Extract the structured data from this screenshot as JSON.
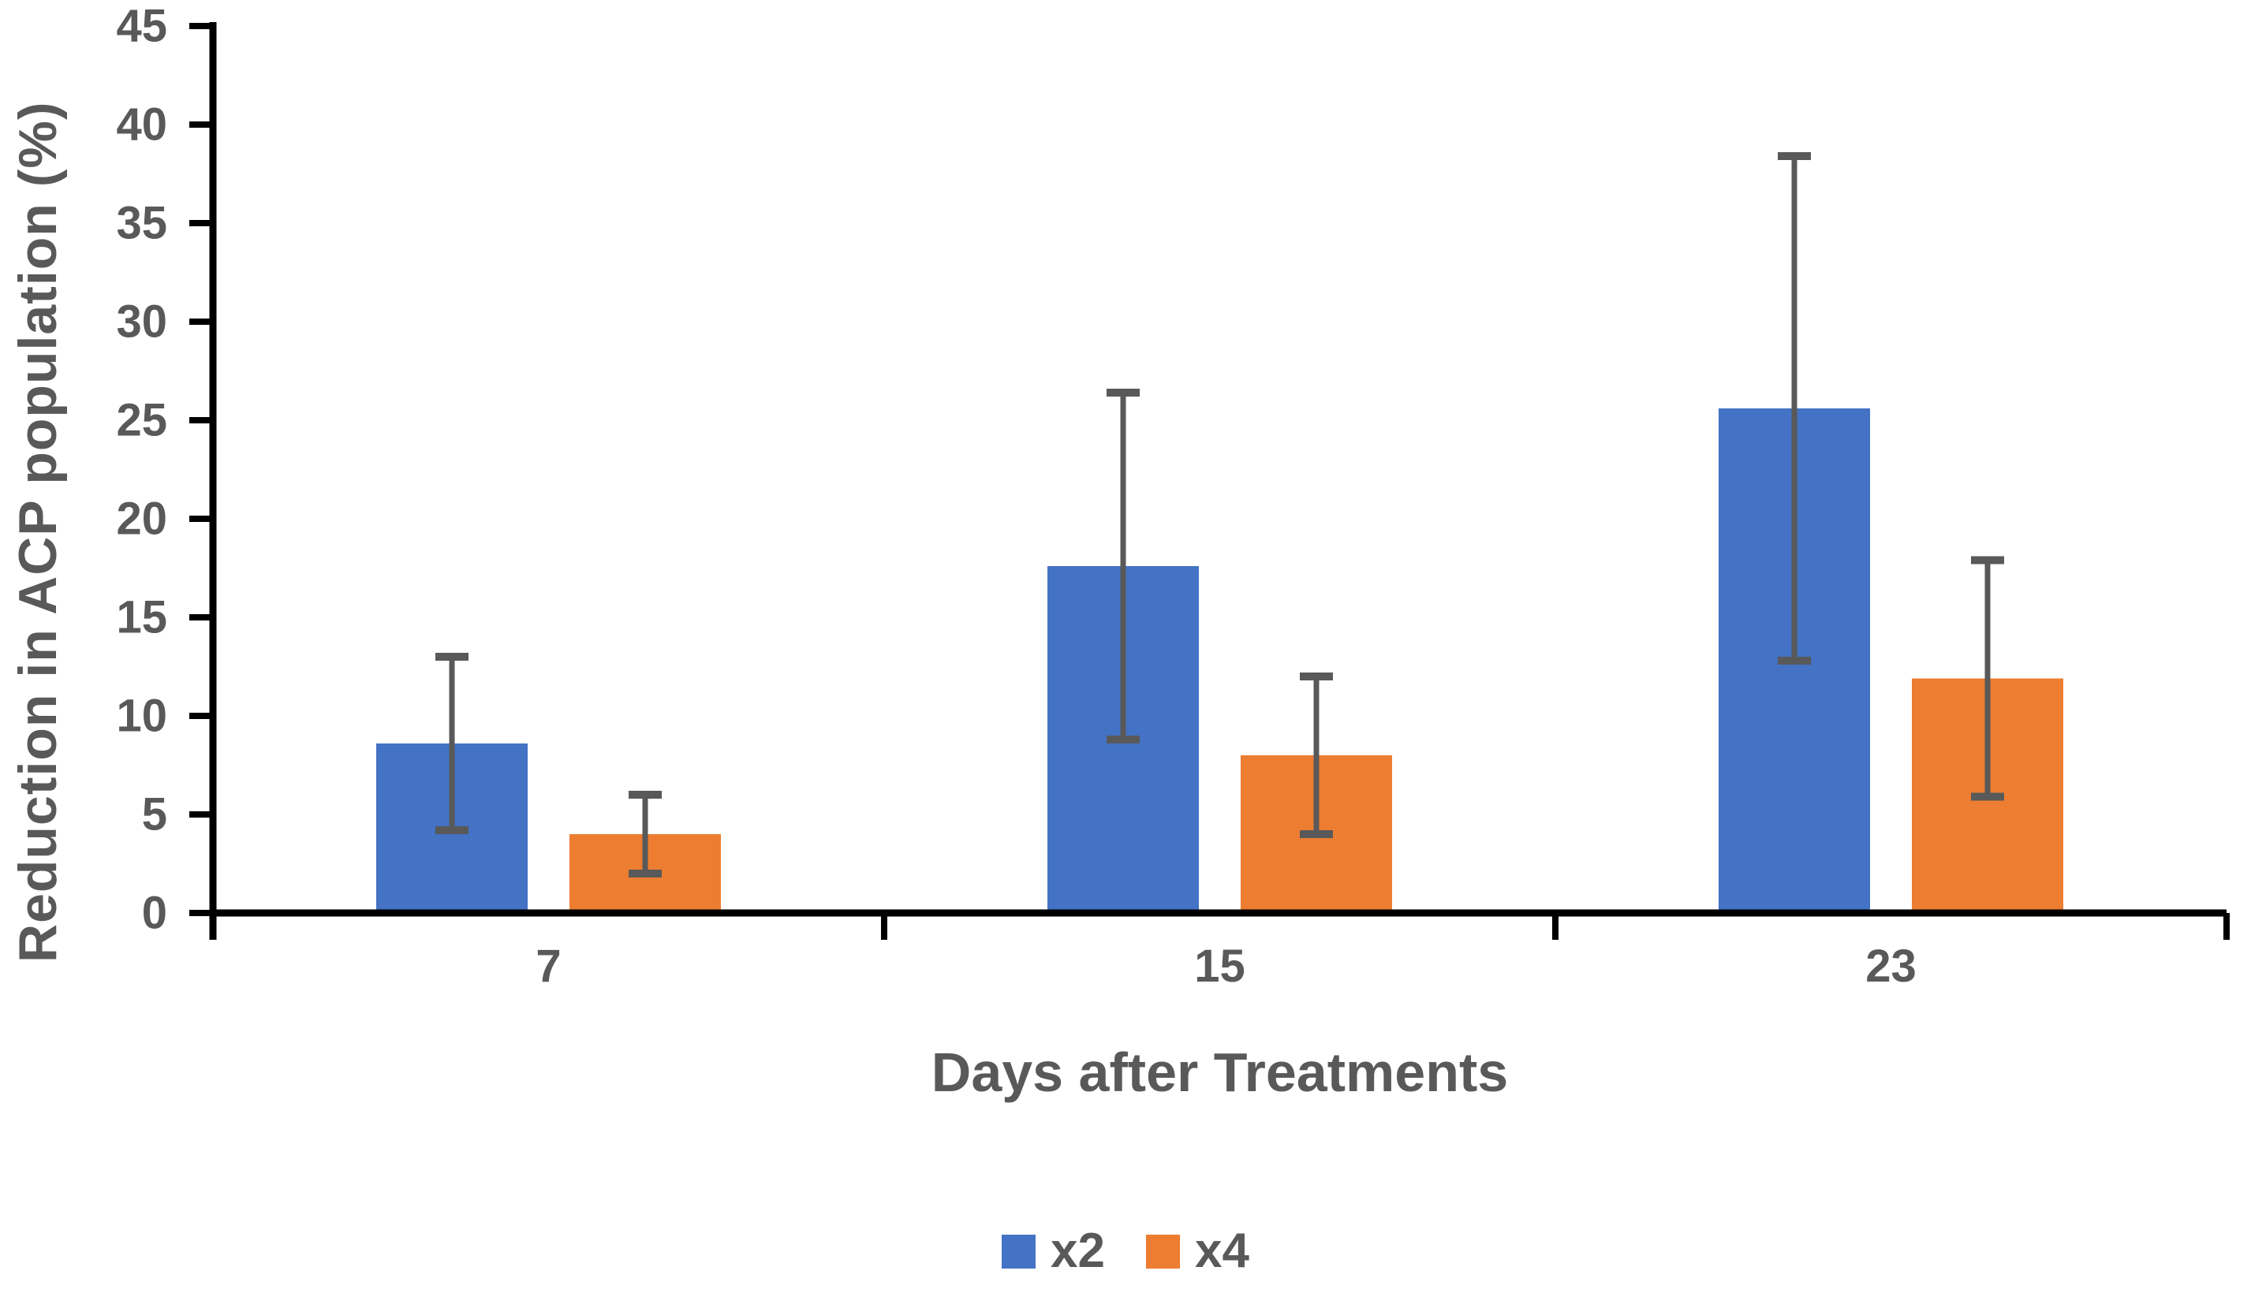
{
  "chart_data": {
    "type": "bar",
    "title": "",
    "xlabel": "Days after Treatments",
    "ylabel": "Reduction in ACP population (%)",
    "categories": [
      "7",
      "15",
      "23"
    ],
    "series": [
      {
        "name": "x2",
        "color": "#4472C4",
        "values": [
          8.6,
          17.6,
          25.6
        ],
        "errors": [
          4.4,
          8.8,
          12.8
        ]
      },
      {
        "name": "x4",
        "color": "#ED7D31",
        "values": [
          4.0,
          8.0,
          11.9
        ],
        "errors": [
          2.0,
          4.0,
          6.0
        ]
      }
    ],
    "ylim": [
      0,
      45
    ],
    "ytick_step": 5,
    "ytick_labels": [
      "0",
      "5",
      "10",
      "15",
      "20",
      "25",
      "30",
      "35",
      "40",
      "45"
    ],
    "grid": false,
    "legend_position": "bottom",
    "legend_entries": [
      "x2",
      "x4"
    ],
    "colors": {
      "axis": "#000000",
      "error_bar": "#595959",
      "text": "#595959",
      "background": "#ffffff"
    }
  }
}
